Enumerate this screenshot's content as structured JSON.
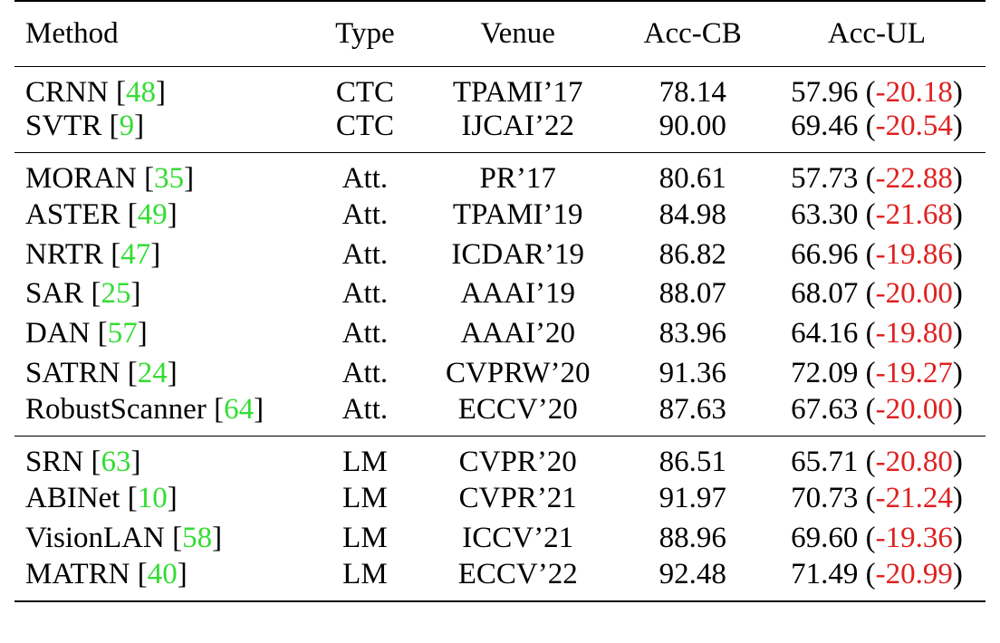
{
  "colors": {
    "citation": "#33dd33",
    "delta": "#e02020",
    "text": "#000000"
  },
  "table": {
    "headers": [
      "Method",
      "Type",
      "Venue",
      "Acc-CB",
      "Acc-UL"
    ],
    "groups": [
      {
        "rows": [
          {
            "method": "CRNN",
            "cite": "48",
            "type": "CTC",
            "venue": "TPAMI’17",
            "acc_cb": "78.14",
            "acc_ul": "57.96",
            "delta": "-20.18"
          },
          {
            "method": "SVTR",
            "cite": "9",
            "type": "CTC",
            "venue": "IJCAI’22",
            "acc_cb": "90.00",
            "acc_ul": "69.46",
            "delta": "-20.54"
          }
        ]
      },
      {
        "rows": [
          {
            "method": "MORAN",
            "cite": "35",
            "type": "Att.",
            "venue": "PR’17",
            "acc_cb": "80.61",
            "acc_ul": "57.73",
            "delta": "-22.88"
          },
          {
            "method": "ASTER",
            "cite": "49",
            "type": "Att.",
            "venue": "TPAMI’19",
            "acc_cb": "84.98",
            "acc_ul": "63.30",
            "delta": "-21.68"
          },
          {
            "method": "NRTR",
            "cite": "47",
            "type": "Att.",
            "venue": "ICDAR’19",
            "acc_cb": "86.82",
            "acc_ul": "66.96",
            "delta": "-19.86"
          },
          {
            "method": "SAR",
            "cite": "25",
            "type": "Att.",
            "venue": "AAAI’19",
            "acc_cb": "88.07",
            "acc_ul": "68.07",
            "delta": "-20.00"
          },
          {
            "method": "DAN",
            "cite": "57",
            "type": "Att.",
            "venue": "AAAI’20",
            "acc_cb": "83.96",
            "acc_ul": "64.16",
            "delta": "-19.80"
          },
          {
            "method": "SATRN",
            "cite": "24",
            "type": "Att.",
            "venue": "CVPRW’20",
            "acc_cb": "91.36",
            "acc_ul": "72.09",
            "delta": "-19.27"
          },
          {
            "method": "RobustScanner",
            "cite": "64",
            "type": "Att.",
            "venue": "ECCV’20",
            "acc_cb": "87.63",
            "acc_ul": "67.63",
            "delta": "-20.00"
          }
        ]
      },
      {
        "rows": [
          {
            "method": "SRN",
            "cite": "63",
            "type": "LM",
            "venue": "CVPR’20",
            "acc_cb": "86.51",
            "acc_ul": "65.71",
            "delta": "-20.80"
          },
          {
            "method": "ABINet",
            "cite": "10",
            "type": "LM",
            "venue": "CVPR’21",
            "acc_cb": "91.97",
            "acc_ul": "70.73",
            "delta": "-21.24"
          },
          {
            "method": "VisionLAN",
            "cite": "58",
            "type": "LM",
            "venue": "ICCV’21",
            "acc_cb": "88.96",
            "acc_ul": "69.60",
            "delta": "-19.36"
          },
          {
            "method": "MATRN",
            "cite": "40",
            "type": "LM",
            "venue": "ECCV’22",
            "acc_cb": "92.48",
            "acc_ul": "71.49",
            "delta": "-20.99"
          }
        ]
      }
    ]
  }
}
